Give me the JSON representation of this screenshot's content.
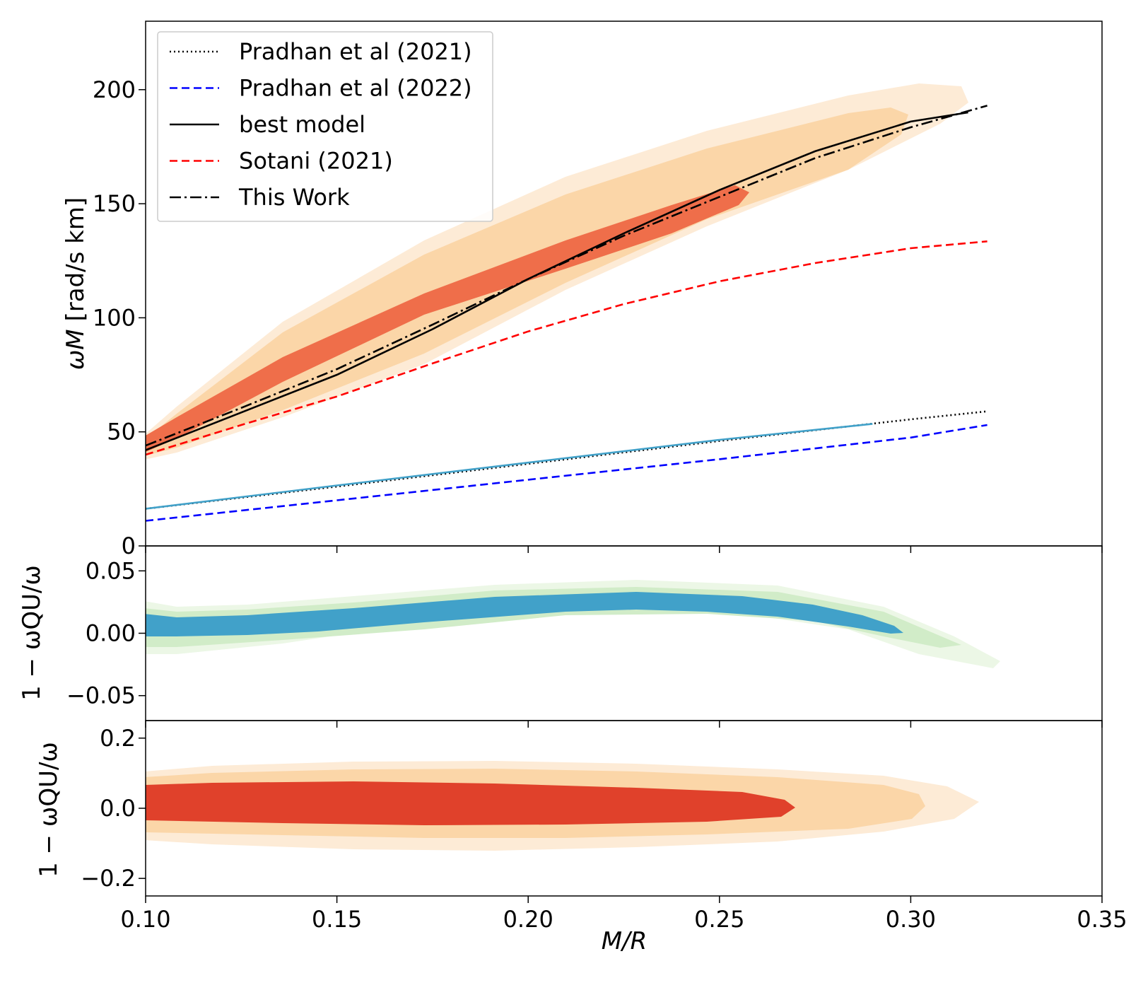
{
  "chart_data": [
    {
      "panel": "top",
      "type": "line",
      "ylabel_main": "ωM",
      "ylabel_unit": " [rad/s km]",
      "xlim": [
        0.1,
        0.35
      ],
      "ylim": [
        0,
        230
      ],
      "yticks": [
        0,
        50,
        100,
        150,
        200
      ],
      "ytick_labels": [
        "0",
        "50",
        "100",
        "150",
        "200"
      ],
      "legend_position": "top-left",
      "series": [
        {
          "name": "Pradhan et al (2021)",
          "style": "dotted",
          "color": "#000000",
          "x": [
            0.1,
            0.15,
            0.2,
            0.25,
            0.3,
            0.32
          ],
          "y": [
            16.3,
            26.0,
            36.0,
            46.0,
            55.5,
            59.0
          ]
        },
        {
          "name": "Pradhan et al (2022)",
          "style": "dashed",
          "color": "#0000ff",
          "x": [
            0.1,
            0.15,
            0.2,
            0.25,
            0.3,
            0.32
          ],
          "y": [
            11.0,
            20.0,
            29.0,
            38.0,
            47.5,
            53.0
          ]
        },
        {
          "name": "best model",
          "style": "solid",
          "color": "#000000",
          "x": [
            0.1,
            0.125,
            0.15,
            0.175,
            0.2,
            0.225,
            0.25,
            0.275,
            0.3,
            0.315
          ],
          "y": [
            42.0,
            58.5,
            75.0,
            95.0,
            117.0,
            137.0,
            156.0,
            173.0,
            186.0,
            190.0
          ]
        },
        {
          "name": "Sotani (2021)",
          "style": "dashed",
          "color": "#ff0000",
          "x": [
            0.1,
            0.125,
            0.15,
            0.175,
            0.2,
            0.225,
            0.25,
            0.275,
            0.3,
            0.32
          ],
          "y": [
            40.0,
            53.0,
            65.5,
            80.0,
            94.0,
            106.0,
            116.0,
            124.0,
            130.5,
            133.5
          ]
        },
        {
          "name": "This Work",
          "style": "dashdot",
          "color": "#000000",
          "x": [
            0.1,
            0.125,
            0.15,
            0.175,
            0.2,
            0.225,
            0.25,
            0.275,
            0.3,
            0.32
          ],
          "y": [
            44.0,
            60.5,
            77.5,
            97.0,
            117.0,
            136.0,
            153.0,
            170.0,
            183.5,
            193.0
          ]
        },
        {
          "name": "",
          "style": "solid",
          "color": "#41a1c9",
          "x": [
            0.1,
            0.15,
            0.2,
            0.25,
            0.29
          ],
          "y": [
            16.3,
            26.5,
            36.5,
            46.5,
            53.5
          ]
        }
      ]
    },
    {
      "panel": "middle",
      "type": "area",
      "ylabel": "1 − ωQU/ω",
      "xlim": [
        0.1,
        0.35
      ],
      "ylim": [
        -0.07,
        0.07
      ],
      "yticks": [
        -0.05,
        0.0,
        0.05
      ],
      "ytick_labels": [
        "−0.05",
        "0.00",
        "0.05"
      ]
    },
    {
      "panel": "bottom",
      "type": "area",
      "ylabel": "1 − ωQU/ω",
      "xlabel": "M/R",
      "xlim": [
        0.1,
        0.35
      ],
      "ylim": [
        -0.25,
        0.25
      ],
      "xticks": [
        0.1,
        0.15,
        0.2,
        0.25,
        0.3,
        0.35
      ],
      "xtick_labels": [
        "0.10",
        "0.15",
        "0.20",
        "0.25",
        "0.30",
        "0.35"
      ],
      "yticks": [
        -0.2,
        0.0,
        0.2
      ],
      "ytick_labels": [
        "−0.2",
        "0.0",
        "0.2"
      ]
    }
  ]
}
